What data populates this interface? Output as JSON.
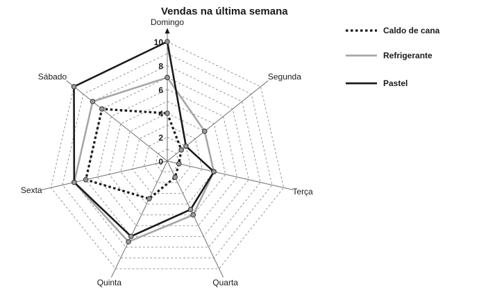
{
  "chart_data": {
    "type": "radar",
    "title": "Vendas na última semana",
    "categories": [
      "Domingo",
      "Segunda",
      "Terça",
      "Quarta",
      "Quinta",
      "Sexta",
      "Sábado"
    ],
    "rlim": [
      0,
      10
    ],
    "r_ticks": [
      0,
      2,
      4,
      6,
      8,
      10
    ],
    "grid": true,
    "legend_position": "top-right",
    "series": [
      {
        "name": "Caldo de cana",
        "values": [
          4,
          1.5,
          1,
          1.5,
          3.5,
          7,
          7
        ],
        "color": "#1a1a1a",
        "line_style": "dotted"
      },
      {
        "name": "Refrigerante",
        "values": [
          7,
          4,
          4,
          5,
          7.5,
          8,
          8
        ],
        "color": "#a6a6a6",
        "line_style": "solid"
      },
      {
        "name": "Pastel",
        "values": [
          10,
          2,
          4,
          4.5,
          7,
          8,
          10
        ],
        "color": "#1a1a1a",
        "line_style": "solid"
      }
    ]
  }
}
